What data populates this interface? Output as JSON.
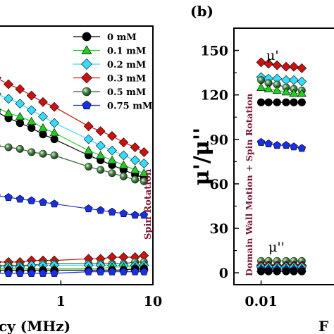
{
  "panel_b_label": "(b)",
  "chart_data": [
    {
      "panel": "a",
      "type": "line",
      "xscale": "log",
      "xlim": [
        0.2,
        10
      ],
      "ylim": [
        0,
        160
      ],
      "xlabel": "cy (MHz)",
      "xticks": [
        1,
        10
      ],
      "xtick_labels": [
        "1",
        "10"
      ],
      "annotation": "Spin Rotation",
      "legend_position": "upper-right",
      "x": [
        0.2,
        0.27,
        0.36,
        0.48,
        0.64,
        0.85,
        2,
        2.7,
        3.6,
        4.8,
        6.4,
        8
      ],
      "series": [
        {
          "name": "0 mM",
          "color": "#000000",
          "marker": "circle",
          "values": [
            107,
            103,
            100,
            97,
            93,
            90,
            80,
            77,
            74,
            71,
            68,
            66
          ]
        },
        {
          "name": "0.1 mM",
          "color": "#22cc22",
          "marker": "triangle",
          "values": [
            110,
            106,
            104,
            101,
            97,
            94,
            83,
            80,
            77,
            74,
            71,
            69
          ]
        },
        {
          "name": "0.2 mM",
          "color": "#33ddff",
          "marker": "diamond",
          "values": [
            118,
            115,
            112,
            108,
            104,
            100,
            90,
            86,
            83,
            80,
            77,
            75
          ]
        },
        {
          "name": "0.3 mM",
          "color": "#cc1111",
          "marker": "diamond",
          "values": [
            128,
            124,
            121,
            117,
            113,
            110,
            98,
            95,
            92,
            88,
            85,
            82
          ]
        },
        {
          "name": "0.5 mM",
          "color": "#2e5e2e",
          "marker": "sphere",
          "values": [
            86,
            85,
            84,
            82,
            81,
            80,
            73,
            71,
            69,
            67,
            65,
            64
          ]
        },
        {
          "name": "0.75 mM",
          "color": "#1a2ee6",
          "marker": "pentagon",
          "values": [
            55,
            54,
            53,
            52,
            51,
            50,
            47,
            46,
            45,
            44,
            43,
            43
          ]
        },
        {
          "name": "",
          "color": "#cc1111",
          "marker": "diamond",
          "values": [
            14,
            14,
            14,
            15,
            15,
            15,
            16,
            16,
            17,
            17,
            17,
            18
          ]
        },
        {
          "name": "",
          "color": "#2e5e2e",
          "marker": "sphere",
          "values": [
            12,
            12,
            12,
            12,
            13,
            13,
            13,
            13,
            13,
            13,
            14,
            14
          ]
        },
        {
          "name": "",
          "color": "#33ddff",
          "marker": "diamond",
          "values": [
            11,
            11,
            11,
            12,
            12,
            12,
            12,
            12,
            12,
            12,
            12,
            12
          ]
        },
        {
          "name": "",
          "color": "#22cc22",
          "marker": "triangle",
          "values": [
            10,
            10,
            10,
            10,
            10,
            10,
            10,
            10,
            11,
            11,
            11,
            11
          ]
        },
        {
          "name": "",
          "color": "#000000",
          "marker": "circle",
          "values": [
            9,
            9,
            9,
            9,
            9,
            9,
            9,
            9,
            9,
            9,
            10,
            10
          ]
        },
        {
          "name": "",
          "color": "#1a2ee6",
          "marker": "pentagon",
          "values": [
            7,
            7,
            7,
            7,
            7,
            7,
            8,
            8,
            8,
            8,
            8,
            8
          ]
        }
      ]
    },
    {
      "panel": "b",
      "type": "line",
      "xscale": "log",
      "xlim": [
        0.006,
        0.05
      ],
      "ylim": [
        -8,
        165
      ],
      "ylabel": "μ'/μ''",
      "xlabel": "F",
      "yticks": [
        0,
        30,
        60,
        90,
        120,
        150
      ],
      "ytick_labels": [
        "0",
        "30",
        "60",
        "90",
        "120",
        "150"
      ],
      "xticks": [
        0.01
      ],
      "xtick_labels": [
        "0.01"
      ],
      "annotation": "Domain Wall Motion + Spin Rotation",
      "label_mu_prime": "μ'",
      "label_mu_double_prime": "μ''",
      "x": [
        0.01,
        0.0115,
        0.0135,
        0.016,
        0.0185,
        0.0215
      ],
      "series": [
        {
          "color": "#cc1111",
          "marker": "diamond",
          "values": [
            142,
            141,
            140,
            139,
            139,
            138
          ]
        },
        {
          "color": "#33ddff",
          "marker": "diamond",
          "values": [
            132,
            131,
            131,
            130,
            130,
            129
          ]
        },
        {
          "color": "#2e5e2e",
          "marker": "sphere",
          "values": [
            130,
            128,
            127,
            125,
            124,
            123
          ]
        },
        {
          "color": "#22cc22",
          "marker": "triangle",
          "values": [
            125,
            124,
            123,
            122,
            121,
            121
          ]
        },
        {
          "color": "#000000",
          "marker": "circle",
          "values": [
            115,
            115,
            115,
            115,
            115,
            115
          ]
        },
        {
          "color": "#1a2ee6",
          "marker": "pentagon",
          "values": [
            88,
            87,
            86,
            86,
            85,
            84
          ]
        },
        {
          "color": "#2e5e2e",
          "marker": "sphere",
          "values": [
            8,
            8,
            8,
            8,
            8,
            8
          ]
        },
        {
          "color": "#cc1111",
          "marker": "diamond",
          "values": [
            5,
            5,
            5,
            5,
            5,
            5
          ]
        },
        {
          "color": "#33ddff",
          "marker": "diamond",
          "values": [
            4,
            4,
            4,
            4,
            4,
            4
          ]
        },
        {
          "color": "#22cc22",
          "marker": "triangle",
          "values": [
            3,
            3,
            3,
            3,
            3,
            3
          ]
        },
        {
          "color": "#1a2ee6",
          "marker": "pentagon",
          "values": [
            2,
            2,
            2,
            2,
            2,
            2
          ]
        },
        {
          "color": "#000000",
          "marker": "circle",
          "values": [
            1,
            1,
            1,
            1,
            1,
            1
          ]
        }
      ]
    }
  ]
}
